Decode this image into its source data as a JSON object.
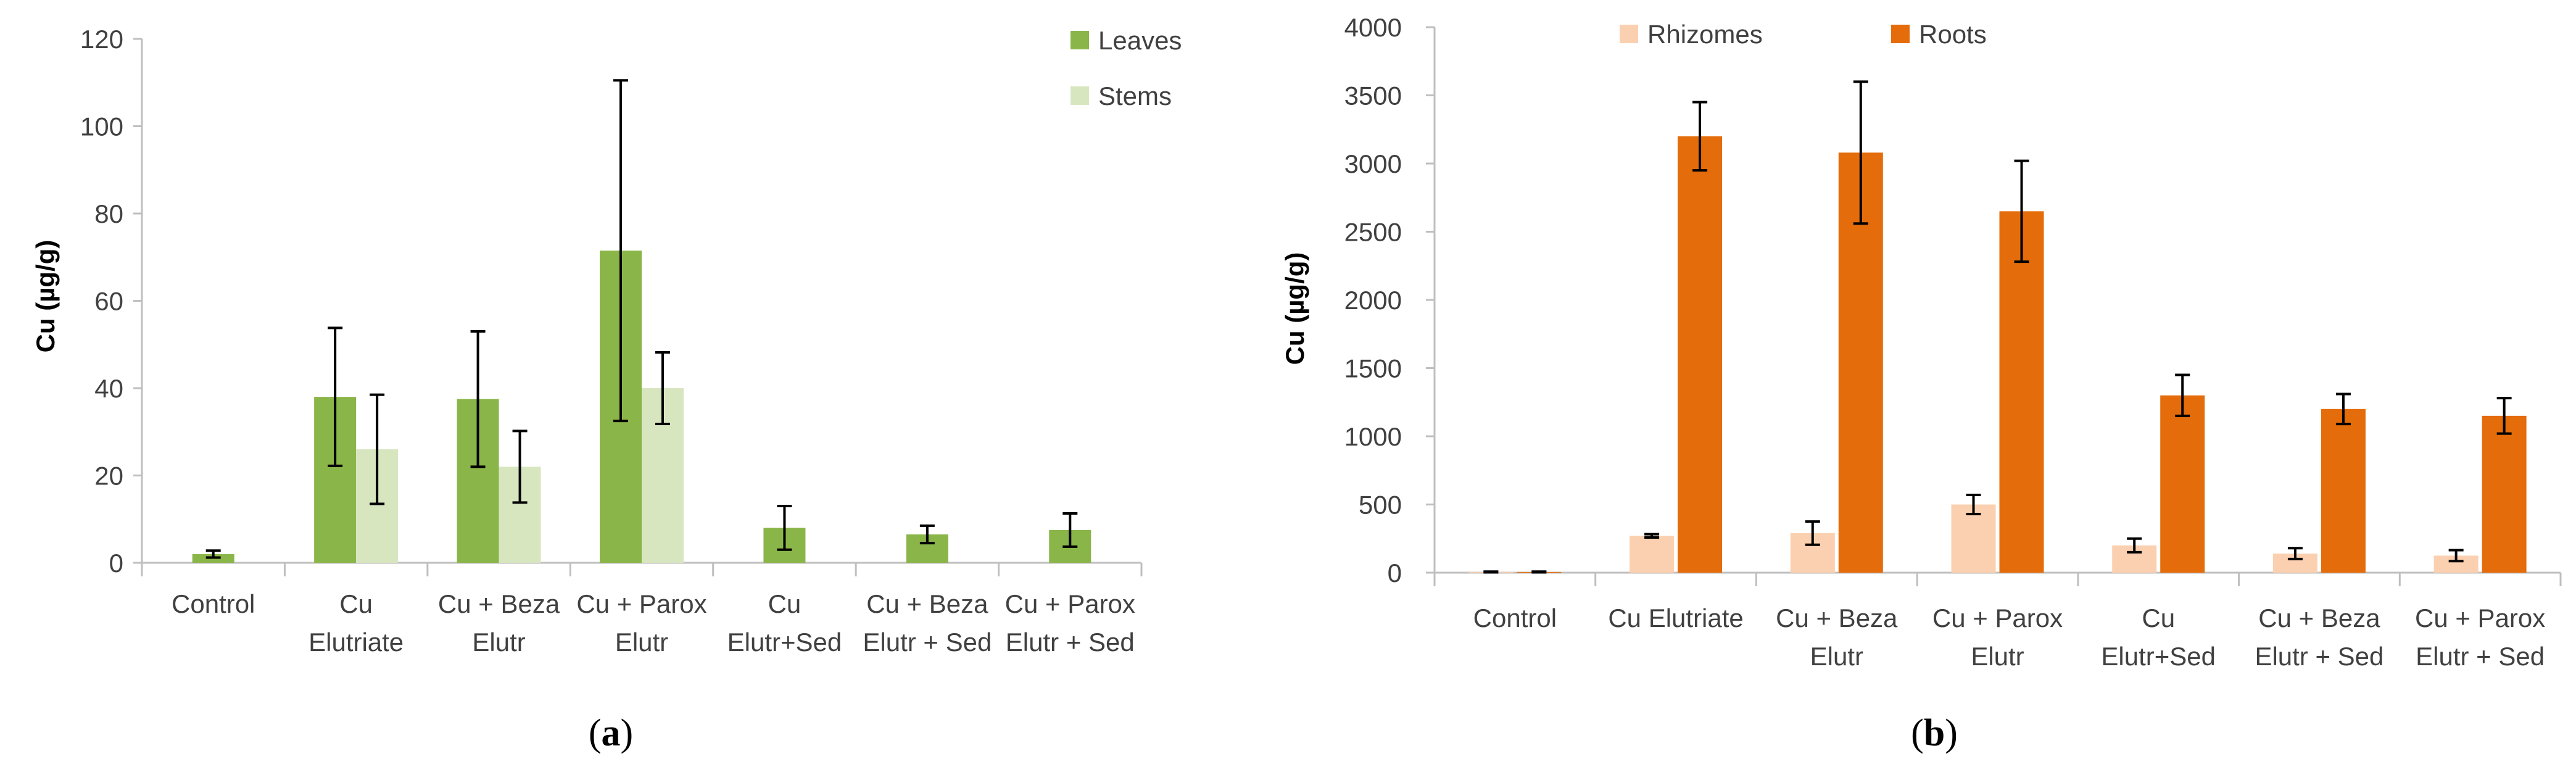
{
  "colors": {
    "leaves": "#8ab548",
    "stems": "#d8e6c0",
    "rhizomes": "#fbd0b0",
    "roots": "#e46c0a",
    "axis": "#bfbfbf",
    "error": "#000000"
  },
  "chart_data": [
    {
      "type": "bar",
      "caption_letter": "a",
      "ylabel": "Cu (µg/g)",
      "ylim": [
        0,
        120
      ],
      "yticks": [
        0,
        20,
        40,
        60,
        80,
        100,
        120
      ],
      "categories": [
        [
          "Control"
        ],
        [
          "Cu",
          "Elutriate"
        ],
        [
          "Cu + Beza",
          "Elutr"
        ],
        [
          "Cu + Parox",
          "Elutr"
        ],
        [
          "Cu",
          "Elutr+Sed"
        ],
        [
          "Cu + Beza",
          "Elutr + Sed"
        ],
        [
          "Cu + Parox",
          "Elutr + Sed"
        ]
      ],
      "legend_position": "top-right",
      "series": [
        {
          "name": "Leaves",
          "color_key": "leaves",
          "values": [
            2,
            38,
            37.5,
            71.5,
            8,
            6.5,
            7.5
          ],
          "errors": [
            0.8,
            15.8,
            15.5,
            39,
            5,
            2,
            3.8
          ]
        },
        {
          "name": "Stems",
          "color_key": "stems",
          "values": [
            null,
            26,
            22,
            40,
            null,
            null,
            null
          ],
          "errors": [
            null,
            12.5,
            8.2,
            8.2,
            null,
            null,
            null
          ]
        }
      ]
    },
    {
      "type": "bar",
      "caption_letter": "b",
      "ylabel": "Cu (µg/g)",
      "ylim": [
        0,
        4000
      ],
      "yticks": [
        0,
        500,
        1000,
        1500,
        2000,
        2500,
        3000,
        3500,
        4000
      ],
      "categories": [
        [
          "Control"
        ],
        [
          "Cu Elutriate"
        ],
        [
          "Cu + Beza",
          "Elutr"
        ],
        [
          "Cu + Parox",
          "Elutr"
        ],
        [
          "Cu",
          "Elutr+Sed"
        ],
        [
          "Cu + Beza",
          "Elutr + Sed"
        ],
        [
          "Cu + Parox",
          "Elutr + Sed"
        ]
      ],
      "legend_position": "top",
      "series": [
        {
          "name": "Rhizomes",
          "color_key": "rhizomes",
          "values": [
            5,
            270,
            290,
            500,
            200,
            140,
            125
          ],
          "errors": [
            3,
            12,
            85,
            70,
            50,
            40,
            40
          ]
        },
        {
          "name": "Roots",
          "color_key": "roots",
          "values": [
            5,
            3200,
            3080,
            2650,
            1300,
            1200,
            1150
          ],
          "errors": [
            3,
            250,
            520,
            370,
            150,
            110,
            130
          ]
        }
      ]
    }
  ]
}
